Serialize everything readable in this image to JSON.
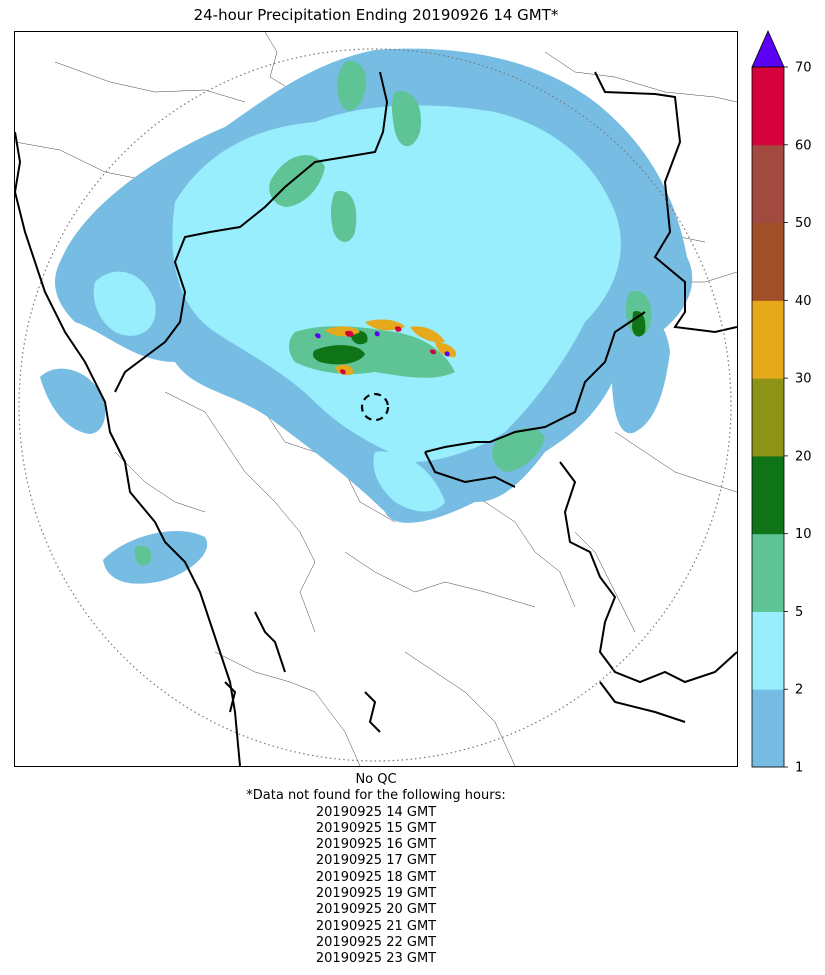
{
  "title": "24-hour Precipitation Ending 20190926 14 GMT*",
  "map": {
    "type": "radar-precipitation",
    "range_ring": "dotted circle around radar site",
    "radar_site_marker": "dashed circle"
  },
  "colorbar": {
    "ticks": [
      "1",
      "2",
      "5",
      "10",
      "20",
      "30",
      "40",
      "50",
      "60",
      "70"
    ],
    "bins": [
      {
        "from": 1,
        "to": 2,
        "color": "#77bde3"
      },
      {
        "from": 2,
        "to": 5,
        "color": "#98eefc"
      },
      {
        "from": 5,
        "to": 10,
        "color": "#5ec496"
      },
      {
        "from": 10,
        "to": 20,
        "color": "#0f7418"
      },
      {
        "from": 20,
        "to": 30,
        "color": "#8c9317"
      },
      {
        "from": 30,
        "to": 40,
        "color": "#e6a91b"
      },
      {
        "from": 40,
        "to": 50,
        "color": "#a04f28"
      },
      {
        "from": 50,
        "to": 60,
        "color": "#a34a40"
      },
      {
        "from": 60,
        "to": 70,
        "color": "#d5003c"
      }
    ],
    "overflow_color": "#5a00f5"
  },
  "footer": {
    "qc_note": "No QC",
    "missing_header": "*Data not found for the following hours:",
    "missing_hours": [
      "20190925 14 GMT",
      "20190925 15 GMT",
      "20190925 16 GMT",
      "20190925 17 GMT",
      "20190925 18 GMT",
      "20190925 19 GMT",
      "20190925 20 GMT",
      "20190925 21 GMT",
      "20190925 22 GMT",
      "20190925 23 GMT"
    ]
  }
}
